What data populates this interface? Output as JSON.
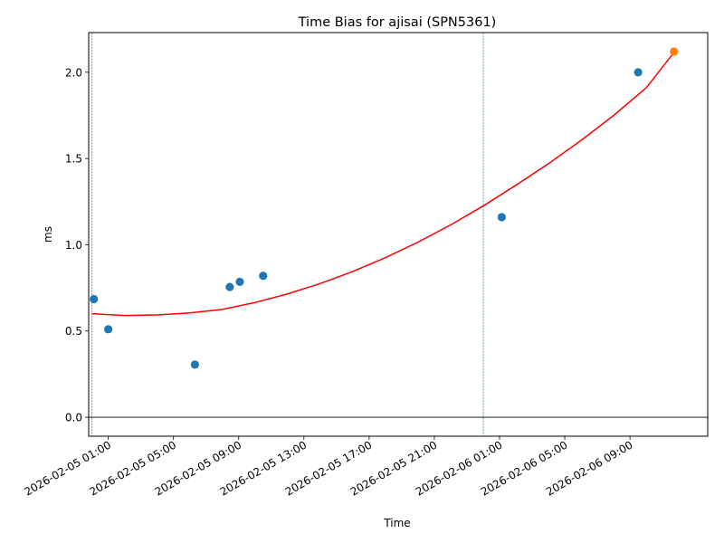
{
  "chart_data": {
    "type": "scatter",
    "title": "Time Bias for ajisai (SPN5361)",
    "xlabel": "Time",
    "ylabel": "ms",
    "xlim": [
      "2026-02-04T23:48",
      "2026-02-06T13:46"
    ],
    "ylim": [
      -0.11,
      2.23
    ],
    "x_ticks": [
      "2026-02-05 01:00",
      "2026-02-05 05:00",
      "2026-02-05 09:00",
      "2026-02-05 13:00",
      "2026-02-05 17:00",
      "2026-02-05 21:00",
      "2026-02-06 01:00",
      "2026-02-06 05:00",
      "2026-02-06 09:00"
    ],
    "y_ticks": [
      "0.0",
      "0.5",
      "1.0",
      "1.5",
      "2.0"
    ],
    "grid": false,
    "zero_line": 0,
    "vertical_markers": [
      "2026-02-05T00:00",
      "2026-02-06T00:00"
    ],
    "series": [
      {
        "type": "scatter",
        "color": "#1f77b4",
        "points": [
          {
            "x": "2026-02-05T00:07",
            "y": 0.685
          },
          {
            "x": "2026-02-05T01:00",
            "y": 0.51
          },
          {
            "x": "2026-02-05T06:19",
            "y": 0.305
          },
          {
            "x": "2026-02-05T08:27",
            "y": 0.755
          },
          {
            "x": "2026-02-05T09:04",
            "y": 0.785
          },
          {
            "x": "2026-02-05T10:30",
            "y": 0.82
          },
          {
            "x": "2026-02-06T01:08",
            "y": 1.16
          },
          {
            "x": "2026-02-06T09:30",
            "y": 2.0
          }
        ]
      },
      {
        "type": "scatter",
        "color": "#ff7f0e",
        "points": [
          {
            "x": "2026-02-06T11:42",
            "y": 2.12
          }
        ]
      },
      {
        "type": "line",
        "color": "#ff0000",
        "points": [
          {
            "x": "2026-02-05T00:00",
            "y": 0.6
          },
          {
            "x": "2026-02-05T02:00",
            "y": 0.59
          },
          {
            "x": "2026-02-05T04:00",
            "y": 0.593
          },
          {
            "x": "2026-02-05T06:00",
            "y": 0.605
          },
          {
            "x": "2026-02-05T08:00",
            "y": 0.625
          },
          {
            "x": "2026-02-05T10:00",
            "y": 0.665
          },
          {
            "x": "2026-02-05T12:00",
            "y": 0.715
          },
          {
            "x": "2026-02-05T14:00",
            "y": 0.775
          },
          {
            "x": "2026-02-05T16:00",
            "y": 0.845
          },
          {
            "x": "2026-02-05T18:00",
            "y": 0.925
          },
          {
            "x": "2026-02-05T20:00",
            "y": 1.015
          },
          {
            "x": "2026-02-05T22:00",
            "y": 1.115
          },
          {
            "x": "2026-02-06T00:00",
            "y": 1.225
          },
          {
            "x": "2026-02-06T02:00",
            "y": 1.345
          },
          {
            "x": "2026-02-06T04:00",
            "y": 1.47
          },
          {
            "x": "2026-02-06T06:00",
            "y": 1.605
          },
          {
            "x": "2026-02-06T08:00",
            "y": 1.75
          },
          {
            "x": "2026-02-06T10:00",
            "y": 1.91
          },
          {
            "x": "2026-02-06T11:42",
            "y": 2.115
          }
        ]
      }
    ]
  }
}
